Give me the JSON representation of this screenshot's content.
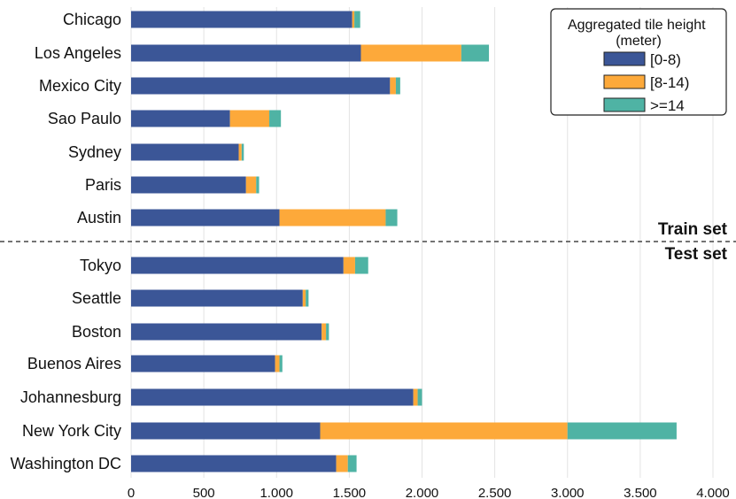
{
  "chart_data": {
    "type": "bar",
    "orientation": "horizontal",
    "stacked": true,
    "groups": [
      {
        "label": "Train set",
        "categories": [
          "Chicago",
          "Los Angeles",
          "Mexico City",
          "Sao Paulo",
          "Sydney",
          "Paris",
          "Austin"
        ],
        "series": [
          {
            "name": "[0-8)",
            "values": [
              1520,
              1580,
              1780,
              680,
              740,
              790,
              1020
            ]
          },
          {
            "name": "[8-14)",
            "values": [
              15,
              690,
              40,
              270,
              20,
              70,
              730
            ]
          },
          {
            "name": ">=14",
            "values": [
              40,
              190,
              30,
              80,
              15,
              20,
              80
            ]
          }
        ]
      },
      {
        "label": "Test set",
        "categories": [
          "Tokyo",
          "Seattle",
          "Boston",
          "Buenos Aires",
          "Johannesburg",
          "New York City",
          "Washington DC"
        ],
        "series": [
          {
            "name": "[0-8)",
            "values": [
              1460,
              1180,
              1310,
              990,
              1940,
              1300,
              1410
            ]
          },
          {
            "name": "[8-14)",
            "values": [
              80,
              20,
              30,
              30,
              30,
              1700,
              80
            ]
          },
          {
            "name": ">=14",
            "values": [
              90,
              20,
              20,
              20,
              30,
              750,
              60
            ]
          }
        ]
      }
    ],
    "series_colors": [
      "#3b5697",
      "#fda93a",
      "#4fb3a4"
    ],
    "xlim": [
      0,
      4100
    ],
    "xticks": [
      0,
      500,
      1000,
      1500,
      2000,
      2500,
      3000,
      3500,
      4000
    ],
    "xtick_labels": [
      "0",
      "500",
      "1.000",
      "1.500",
      "2.000",
      "2.500",
      "3.000",
      "3.500",
      "4.000"
    ],
    "xlabel": "",
    "ylabel": "",
    "grid": true,
    "legend": {
      "title": "Aggregated tile height (meter)",
      "placement": "top-right",
      "entries": [
        "[0-8)",
        "[8-14)",
        ">=14"
      ]
    }
  }
}
